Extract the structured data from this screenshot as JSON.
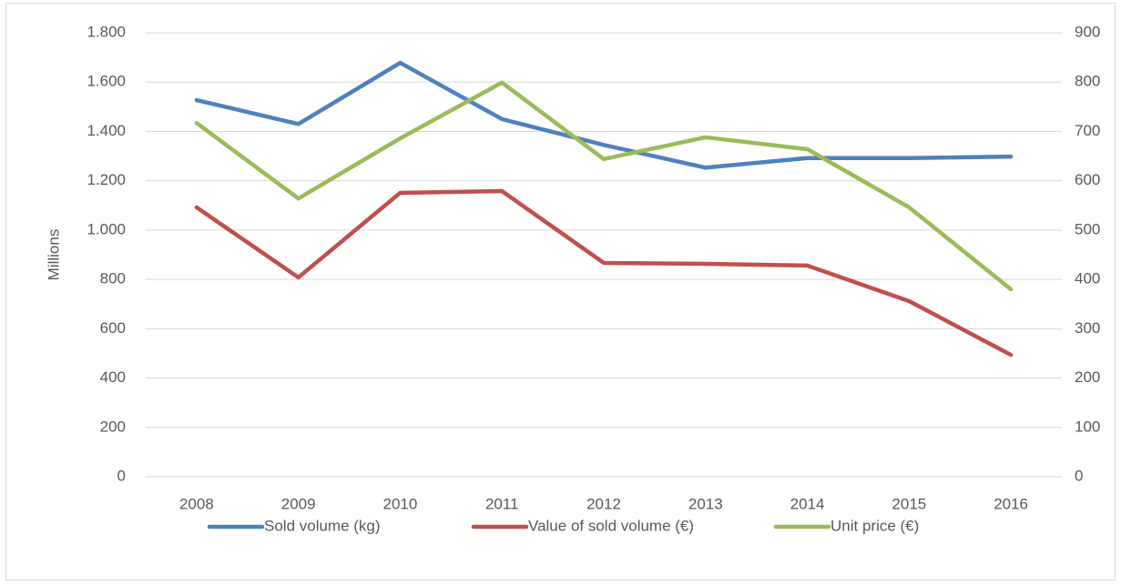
{
  "chart_data": {
    "type": "line",
    "y_label": "Millions",
    "categories": [
      "2008",
      "2009",
      "2010",
      "2011",
      "2012",
      "2013",
      "2014",
      "2015",
      "2016"
    ],
    "series": [
      {
        "name": "Sold volume (kg)",
        "color": "#4f81bd",
        "values": [
          1527,
          1430,
          1678,
          1450,
          1345,
          1253,
          1292,
          1292,
          1298
        ]
      },
      {
        "name": "Value of sold volume (€)",
        "color": "#c0504d",
        "values": [
          1092,
          808,
          1151,
          1158,
          867,
          863,
          856,
          712,
          494
        ]
      },
      {
        "name": "Unit price (€)",
        "color": "#9bbb59",
        "axis": "y2",
        "values": [
          717,
          564,
          686,
          799,
          644,
          688,
          664,
          546,
          380
        ]
      }
    ],
    "ylim": [
      0,
      1800
    ],
    "yticks": [
      0,
      200,
      400,
      600,
      800,
      {
        "value": 1000,
        "label": "1.000"
      },
      {
        "value": 1200,
        "label": "1.200"
      },
      {
        "value": 1400,
        "label": "1.400"
      },
      {
        "value": 1600,
        "label": "1.600"
      },
      {
        "value": 1800,
        "label": "1.800"
      }
    ],
    "y2lim": [
      0,
      900
    ],
    "y2ticks": [
      0,
      100,
      200,
      300,
      400,
      500,
      600,
      700,
      800,
      900
    ],
    "grid": true,
    "legend": "bottom"
  }
}
